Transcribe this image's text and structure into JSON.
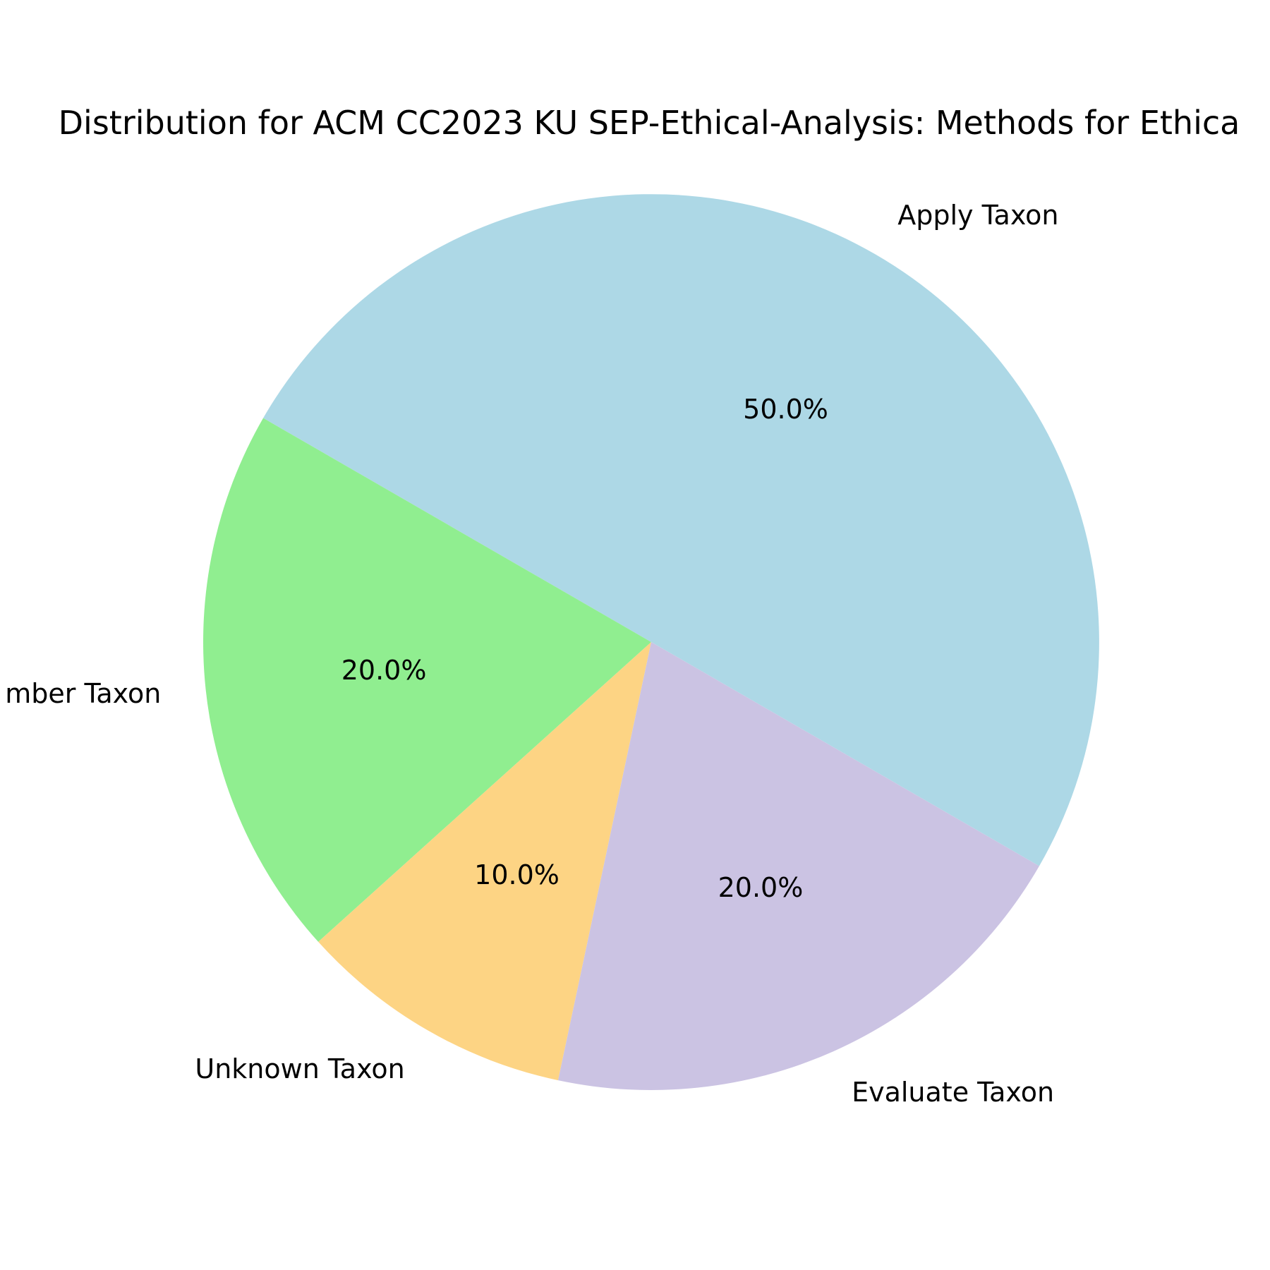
{
  "chart_data": {
    "type": "pie",
    "title": "Distribution for ACM CC2023 KU SEP-Ethical-Analysis: Methods for Ethica",
    "slices": [
      {
        "label": "Apply Taxon",
        "value": 50.0,
        "pct_label": "50.0%",
        "color": "#add8e6"
      },
      {
        "label": "Remember Taxon",
        "value": 20.0,
        "pct_label": "20.0%",
        "color": "#90ee90"
      },
      {
        "label": "Unknown Taxon",
        "value": 10.0,
        "pct_label": "10.0%",
        "color": "#fdd484"
      },
      {
        "label": "Evaluate Taxon",
        "value": 20.0,
        "pct_label": "20.0%",
        "color": "#cbc3e3"
      }
    ],
    "shown_labels": [
      "Apply Taxon",
      "mber Taxon",
      "Unknown Taxon",
      "Evaluate Taxon"
    ],
    "start_angle_deg": -30,
    "direction": "counterclockwise"
  }
}
